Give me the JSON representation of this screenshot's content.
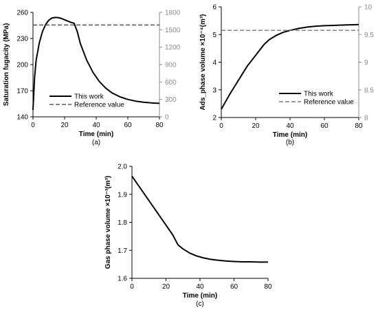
{
  "chart_data": [
    {
      "type": "line",
      "panel_label": "(a)",
      "xlabel": "Time (min)",
      "ylabel": "Saturation fugacity (MPa)",
      "xlim": [
        0,
        80
      ],
      "xticks": [
        0,
        20,
        40,
        60,
        80
      ],
      "ylim": [
        140,
        260
      ],
      "yticks": [
        140,
        170,
        200,
        230,
        260
      ],
      "y2lim": [
        0,
        1800
      ],
      "y2ticks": [
        0,
        300,
        600,
        900,
        1200,
        1500,
        1800
      ],
      "legend_position": "lower-center",
      "series": [
        {
          "name": "This work",
          "style": "solid",
          "color": "#000000",
          "x": [
            0,
            1,
            2,
            4,
            6,
            8,
            10,
            12,
            14,
            16,
            18,
            20,
            22,
            24,
            26,
            28,
            30,
            34,
            38,
            42,
            46,
            50,
            55,
            60,
            65,
            70,
            75,
            80
          ],
          "y": [
            148,
            185,
            205,
            225,
            238,
            246,
            251,
            253.5,
            254.2,
            254,
            253,
            251.5,
            250,
            248.5,
            247.5,
            238,
            224,
            205,
            191,
            180.5,
            173,
            167.5,
            163,
            160,
            158,
            156.8,
            156,
            155.5
          ]
        },
        {
          "name": "Reference value",
          "style": "dashed",
          "color": "#555555",
          "x": [
            0,
            80
          ],
          "y": [
            245.5,
            245.5
          ]
        }
      ]
    },
    {
      "type": "line",
      "panel_label": "(b)",
      "xlabel": "Time (min)",
      "ylabel": "Ads_phase volume ×10⁻⁴(m³)",
      "xlim": [
        0,
        80
      ],
      "xticks": [
        0,
        20,
        40,
        60,
        80
      ],
      "ylim": [
        2,
        6
      ],
      "yticks": [
        2,
        3,
        4,
        5,
        6
      ],
      "y2lim": [
        8,
        10
      ],
      "y2ticks": [
        8,
        8.5,
        9,
        9.5,
        10
      ],
      "legend_position": "lower-right",
      "series": [
        {
          "name": "This work",
          "style": "solid",
          "color": "#000000",
          "x": [
            0,
            5,
            10,
            15,
            20,
            25,
            28,
            32,
            36,
            40,
            45,
            50,
            55,
            60,
            65,
            70,
            75,
            80
          ],
          "y": [
            2.3,
            2.85,
            3.35,
            3.85,
            4.25,
            4.65,
            4.82,
            4.97,
            5.08,
            5.15,
            5.22,
            5.27,
            5.3,
            5.32,
            5.33,
            5.34,
            5.35,
            5.36
          ]
        },
        {
          "name": "Reference value",
          "style": "dashed",
          "color": "#777777",
          "x": [
            0,
            80
          ],
          "y": [
            5.15,
            5.15
          ]
        }
      ]
    },
    {
      "type": "line",
      "panel_label": "(c)",
      "xlabel": "Time (min)",
      "ylabel": "Gas phase volume ×10⁻³(m³)",
      "xlim": [
        0,
        80
      ],
      "xticks": [
        0,
        20,
        40,
        60,
        80
      ],
      "ylim": [
        1.6,
        2.0
      ],
      "yticks": [
        1.6,
        1.7,
        1.8,
        1.9,
        2.0
      ],
      "series": [
        {
          "style": "solid",
          "color": "#000000",
          "x": [
            0,
            4,
            8,
            12,
            16,
            20,
            24,
            27,
            30,
            34,
            38,
            42,
            46,
            50,
            55,
            60,
            65,
            70,
            75,
            80
          ],
          "y": [
            1.965,
            1.93,
            1.895,
            1.86,
            1.825,
            1.79,
            1.755,
            1.72,
            1.705,
            1.69,
            1.68,
            1.673,
            1.668,
            1.665,
            1.662,
            1.66,
            1.659,
            1.659,
            1.658,
            1.658
          ]
        }
      ]
    }
  ]
}
